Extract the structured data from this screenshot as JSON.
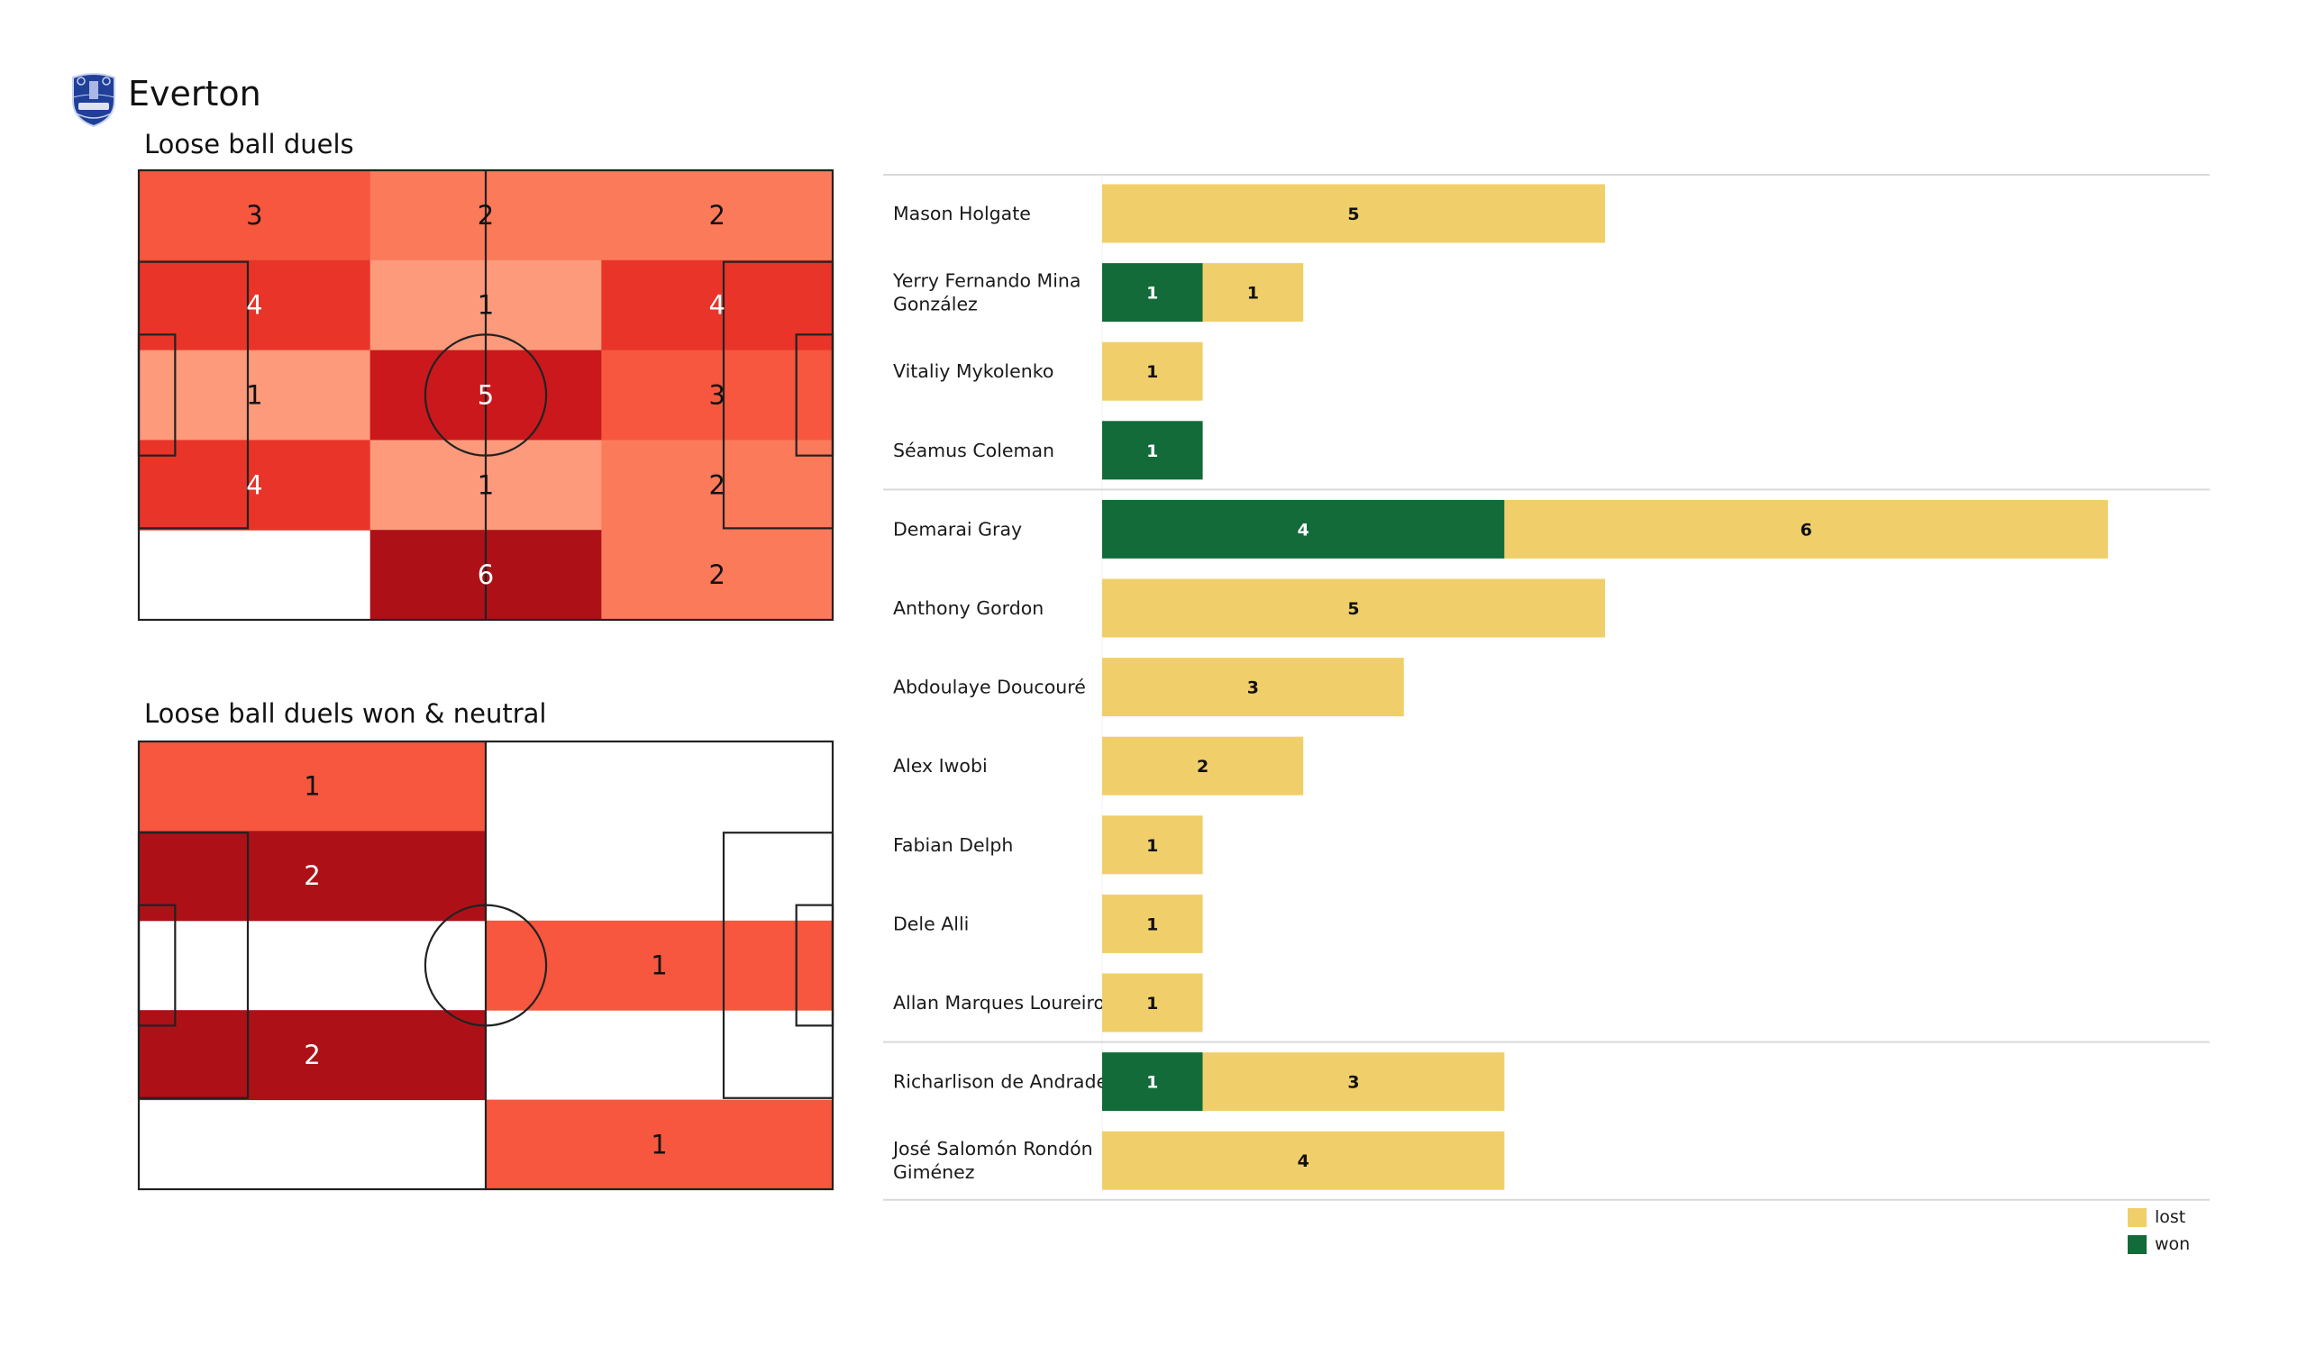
{
  "header": {
    "team_name": "Everton",
    "logo_icon": "everton-crest-icon"
  },
  "colors": {
    "won": "#136b39",
    "lost": "#f0cf6a",
    "divider": "#d9d9d9",
    "pitch_line": "#222222"
  },
  "chart_data": [
    {
      "type": "heatmap",
      "title": "Loose ball duels",
      "grid_columns": 3,
      "grid_rows": 5,
      "values": [
        [
          3,
          2,
          2
        ],
        [
          4,
          1,
          4
        ],
        [
          1,
          5,
          3
        ],
        [
          4,
          1,
          2
        ],
        [
          0,
          6,
          2
        ]
      ],
      "colormap": "Reds",
      "value_range": [
        0,
        6
      ]
    },
    {
      "type": "heatmap",
      "title": "Loose ball duels won & neutral",
      "grid_columns": 2,
      "grid_rows": 5,
      "values": [
        [
          1,
          0
        ],
        [
          2,
          0
        ],
        [
          0,
          1
        ],
        [
          2,
          0
        ],
        [
          0,
          1
        ]
      ],
      "colormap": "Reds",
      "value_range": [
        0,
        2
      ]
    },
    {
      "type": "bar",
      "orientation": "horizontal",
      "stacked": true,
      "title": "",
      "xlim": [
        0,
        10
      ],
      "legend": {
        "placement": "bottom-right",
        "entries": [
          {
            "label": "lost",
            "series": "lost"
          },
          {
            "label": "won",
            "series": "won"
          }
        ]
      },
      "groups": [
        {
          "players": [
            {
              "name": "Mason Holgate",
              "won": 0,
              "lost": 5
            },
            {
              "name": "Yerry Fernando Mina González",
              "won": 1,
              "lost": 1
            },
            {
              "name": "Vitaliy Mykolenko",
              "won": 0,
              "lost": 1
            },
            {
              "name": "Séamus Coleman",
              "won": 1,
              "lost": 0
            }
          ]
        },
        {
          "players": [
            {
              "name": "Demarai Gray",
              "won": 4,
              "lost": 6
            },
            {
              "name": "Anthony Gordon",
              "won": 0,
              "lost": 5
            },
            {
              "name": "Abdoulaye Doucouré",
              "won": 0,
              "lost": 3
            },
            {
              "name": "Alex Iwobi",
              "won": 0,
              "lost": 2
            },
            {
              "name": "Fabian Delph",
              "won": 0,
              "lost": 1
            },
            {
              "name": "Dele Alli",
              "won": 0,
              "lost": 1
            },
            {
              "name": "Allan Marques Loureiro",
              "won": 0,
              "lost": 1
            }
          ]
        },
        {
          "players": [
            {
              "name": "Richarlison de Andrade",
              "won": 1,
              "lost": 3
            },
            {
              "name": "José Salomón Rondón Giménez",
              "won": 0,
              "lost": 4
            }
          ]
        }
      ]
    }
  ],
  "legend": {
    "lost_label": "lost",
    "won_label": "won"
  }
}
